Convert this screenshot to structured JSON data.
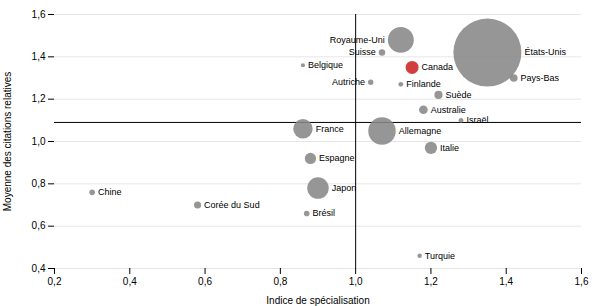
{
  "chart_data": {
    "type": "bubble",
    "xlabel": "Indice de spécialisation",
    "ylabel": "Moyenne des citations relatives",
    "labels": [
      "États-Unis",
      "Royaume-Uni",
      "Canada",
      "Allemagne",
      "Japon",
      "France",
      "Australie",
      "Italie",
      "Espagne",
      "Pays-Bas",
      "Suède",
      "Suisse",
      "Belgique",
      "Autriche",
      "Finlande",
      "Israël",
      "Corée du Sud",
      "Chine",
      "Brésil",
      "Turquie"
    ],
    "x": [
      1.35,
      1.12,
      1.15,
      1.07,
      0.9,
      0.86,
      1.18,
      1.2,
      0.88,
      1.42,
      1.22,
      1.07,
      0.86,
      1.04,
      1.12,
      1.28,
      0.58,
      0.3,
      0.87,
      1.17
    ],
    "y": [
      1.42,
      1.48,
      1.35,
      1.05,
      0.78,
      1.06,
      1.15,
      0.97,
      0.92,
      1.3,
      1.22,
      1.42,
      1.36,
      1.28,
      1.27,
      1.1,
      0.7,
      0.76,
      0.66,
      0.46
    ],
    "sizes": [
      55000,
      8000,
      2000,
      9000,
      5500,
      4500,
      900,
      1800,
      1500,
      700,
      800,
      500,
      200,
      350,
      280,
      280,
      600,
      380,
      380,
      230
    ],
    "colors": [
      "#888888",
      "#888888",
      "#cc2222",
      "#888888",
      "#888888",
      "#888888",
      "#888888",
      "#888888",
      "#888888",
      "#888888",
      "#888888",
      "#888888",
      "#888888",
      "#888888",
      "#888888",
      "#888888",
      "#888888",
      "#888888",
      "#888888",
      "#888888"
    ],
    "vline_x": 1.0,
    "hline_y": 1.09,
    "xlim": [
      0.2,
      1.6
    ],
    "ylim": [
      0.4,
      1.6
    ],
    "xticks": [
      {
        "value": 0.2,
        "label": "0,2"
      },
      {
        "value": 0.4,
        "label": "0,4"
      },
      {
        "value": 0.6,
        "label": "0,6"
      },
      {
        "value": 0.8,
        "label": "0,8"
      },
      {
        "value": 1.0,
        "label": "1,0"
      },
      {
        "value": 1.2,
        "label": "1,2"
      },
      {
        "value": 1.4,
        "label": "1,4"
      },
      {
        "value": 1.6,
        "label": "1,6"
      }
    ],
    "yticks": [
      {
        "value": 0.4,
        "label": "0,4"
      },
      {
        "value": 0.6,
        "label": "0,6"
      },
      {
        "value": 0.8,
        "label": "0,8"
      },
      {
        "value": 1.0,
        "label": "1,0"
      },
      {
        "value": 1.2,
        "label": "1,2"
      },
      {
        "value": 1.4,
        "label": "1,4"
      },
      {
        "value": 1.6,
        "label": "1,6"
      }
    ],
    "grid": "y"
  }
}
